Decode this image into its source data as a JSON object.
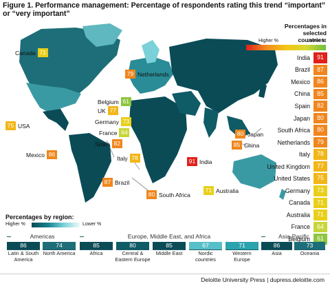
{
  "title": "Figure 1. Performance management: Percentage of respondents rating this trend “important” or “very important”",
  "legend": {
    "title_line1": "Percentages in",
    "title_line2": "selected countries:",
    "higher": "Higher %",
    "lower": "Lower %"
  },
  "map_labels": [
    {
      "name": "Canada",
      "value": 71
    },
    {
      "name": "Netherlands",
      "value": 79
    },
    {
      "name": "Belgium",
      "value": 61
    },
    {
      "name": "UK",
      "value": 77
    },
    {
      "name": "Germany",
      "value": 73
    },
    {
      "name": "France",
      "value": 64
    },
    {
      "name": "USA",
      "value": 75
    },
    {
      "name": "Spain",
      "value": 82
    },
    {
      "name": "Mexico",
      "value": 86
    },
    {
      "name": "Italy",
      "value": 78
    },
    {
      "name": "Japan",
      "value": 80
    },
    {
      "name": "China",
      "value": 85
    },
    {
      "name": "India",
      "value": 91
    },
    {
      "name": "Brazil",
      "value": 87
    },
    {
      "name": "Australia",
      "value": 71
    },
    {
      "name": "South Africa",
      "value": 80
    }
  ],
  "chart_data": [
    {
      "type": "table",
      "title": "Percentages in selected countries:",
      "categories": [
        "India",
        "Brazil",
        "Mexico",
        "China",
        "Spain",
        "Japan",
        "South Africa",
        "Netherlands",
        "Italy",
        "United Kingdom",
        "United States",
        "Germany",
        "Canada",
        "Australia",
        "France",
        "Belgium"
      ],
      "values": [
        91,
        87,
        86,
        85,
        82,
        80,
        80,
        79,
        78,
        77,
        75,
        73,
        71,
        71,
        64,
        61
      ]
    },
    {
      "type": "table",
      "title": "Percentages by region:",
      "groups": [
        {
          "name": "Americas",
          "regions": [
            {
              "name": "Latin & South America",
              "value": 86
            },
            {
              "name": "North America",
              "value": 74
            }
          ]
        },
        {
          "name": "Europe, Middle East, and Africa",
          "regions": [
            {
              "name": "Africa",
              "value": 85
            },
            {
              "name": "Central & Eastern Europe",
              "value": 80
            },
            {
              "name": "Middle East",
              "value": 85
            },
            {
              "name": "Nordic countries",
              "value": 67
            },
            {
              "name": "Western Europe",
              "value": 71
            }
          ]
        },
        {
          "name": "Asia-Pacific",
          "regions": [
            {
              "name": "Asia",
              "value": 86
            },
            {
              "name": "Oceania",
              "value": 73
            }
          ]
        }
      ]
    }
  ],
  "region_legend": {
    "title": "Percentages by region:",
    "higher": "Higher %",
    "lower": "Lower %"
  },
  "footer": "Deloitte University Press  |  dupress.deloitte.com"
}
